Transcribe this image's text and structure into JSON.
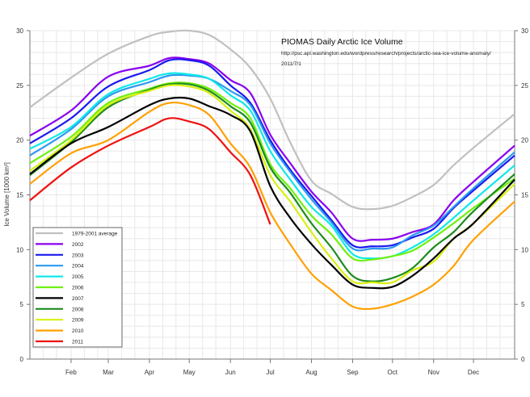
{
  "chart_data": {
    "type": "line",
    "title": "PIOMAS Daily Arctic Ice Volume",
    "subtitle": "http://psc.apl.washington.edu/wordpress/research/projects/arctic-sea-ice-volume-anomaly/",
    "date": "2011/7/1",
    "ylabel": "Ice Volume [1000 km³]",
    "xlabel": "",
    "ylim": [
      0,
      30
    ],
    "yticks": [
      0,
      5,
      10,
      15,
      20,
      25,
      30
    ],
    "xlim_day_of_year": [
      0,
      365
    ],
    "month_ticks": [
      {
        "label": "Feb",
        "day": 31
      },
      {
        "label": "Mar",
        "day": 59
      },
      {
        "label": "Apr",
        "day": 90
      },
      {
        "label": "May",
        "day": 120
      },
      {
        "label": "Jun",
        "day": 151
      },
      {
        "label": "Jul",
        "day": 181
      },
      {
        "label": "Aug",
        "day": 212
      },
      {
        "label": "Sep",
        "day": 243
      },
      {
        "label": "Oct",
        "day": 273
      },
      {
        "label": "Nov",
        "day": 304
      },
      {
        "label": "Dec",
        "day": 334
      }
    ],
    "grid": true,
    "legend_position": "bottom-left",
    "x_day_of_year": [
      0,
      31,
      59,
      90,
      105,
      120,
      135,
      151,
      166,
      181,
      196,
      212,
      227,
      243,
      258,
      273,
      288,
      304,
      319,
      334,
      365
    ],
    "series": [
      {
        "name": "1979-2001 average",
        "color": "#c0c0c0",
        "values": [
          23.0,
          25.7,
          27.9,
          29.5,
          29.9,
          30.0,
          29.6,
          28.3,
          26.6,
          23.8,
          19.8,
          16.3,
          15.1,
          13.9,
          13.7,
          14.0,
          14.8,
          15.9,
          17.7,
          19.3,
          22.4
        ]
      },
      {
        "name": "2002",
        "color": "#8a00f0",
        "values": [
          20.4,
          22.7,
          25.8,
          26.8,
          27.5,
          27.4,
          27.0,
          25.5,
          24.3,
          20.5,
          17.9,
          15.3,
          13.4,
          11.0,
          10.9,
          11.0,
          11.6,
          12.3,
          14.5,
          16.2,
          19.5
        ]
      },
      {
        "name": "2003",
        "color": "#1a1af0",
        "values": [
          19.7,
          22.0,
          24.9,
          26.4,
          27.3,
          27.3,
          26.8,
          25.0,
          23.4,
          20.0,
          17.3,
          14.9,
          12.7,
          10.4,
          10.3,
          10.4,
          11.1,
          11.9,
          13.8,
          15.4,
          18.6
        ]
      },
      {
        "name": "2004",
        "color": "#2a9af0",
        "values": [
          18.6,
          21.0,
          24.0,
          25.3,
          25.9,
          25.9,
          25.6,
          24.5,
          23.2,
          19.7,
          17.1,
          14.6,
          12.5,
          10.1,
          10.1,
          10.2,
          11.3,
          12.2,
          13.9,
          15.6,
          18.9
        ]
      },
      {
        "name": "2005",
        "color": "#10e8e8",
        "values": [
          19.2,
          21.2,
          24.2,
          25.6,
          26.1,
          26.0,
          25.6,
          24.1,
          22.7,
          19.0,
          16.4,
          13.9,
          12.2,
          9.6,
          9.2,
          9.4,
          10.2,
          11.4,
          12.9,
          14.5,
          17.7
        ]
      },
      {
        "name": "2006",
        "color": "#70f010",
        "values": [
          17.9,
          20.3,
          23.4,
          24.7,
          25.2,
          25.2,
          24.7,
          23.4,
          22.0,
          17.8,
          15.6,
          13.1,
          11.4,
          9.2,
          9.1,
          9.4,
          9.9,
          11.1,
          12.4,
          13.8,
          16.5
        ]
      },
      {
        "name": "2007",
        "color": "#000000",
        "values": [
          16.9,
          19.7,
          21.2,
          23.2,
          23.8,
          23.8,
          23.1,
          22.3,
          20.8,
          15.8,
          12.9,
          10.5,
          8.6,
          6.8,
          6.5,
          6.6,
          7.6,
          9.2,
          11.0,
          12.4,
          16.4
        ]
      },
      {
        "name": "2008",
        "color": "#1e8c1e",
        "values": [
          16.8,
          19.8,
          23.0,
          24.6,
          25.1,
          25.1,
          24.5,
          23.1,
          21.6,
          17.5,
          15.2,
          12.4,
          10.2,
          7.6,
          7.1,
          7.4,
          8.3,
          10.2,
          11.6,
          13.5,
          16.9
        ]
      },
      {
        "name": "2009",
        "color": "#d8f010",
        "values": [
          17.2,
          20.0,
          23.2,
          24.5,
          25.0,
          24.9,
          24.3,
          22.7,
          21.0,
          16.8,
          14.4,
          11.6,
          9.2,
          7.1,
          7.0,
          7.0,
          8.1,
          8.9,
          11.0,
          12.4,
          16.0
        ]
      },
      {
        "name": "2010",
        "color": "#ffa000",
        "values": [
          16.0,
          18.8,
          20.0,
          22.6,
          23.4,
          23.2,
          22.3,
          19.7,
          17.5,
          13.4,
          10.5,
          7.8,
          6.3,
          4.8,
          4.6,
          5.0,
          5.7,
          6.8,
          8.5,
          10.9,
          14.4
        ]
      },
      {
        "name": "2011",
        "color": "#f01010",
        "values": [
          14.5,
          17.5,
          19.5,
          21.2,
          22.0,
          21.7,
          21.0,
          18.9,
          16.8,
          12.3
        ]
      }
    ]
  }
}
